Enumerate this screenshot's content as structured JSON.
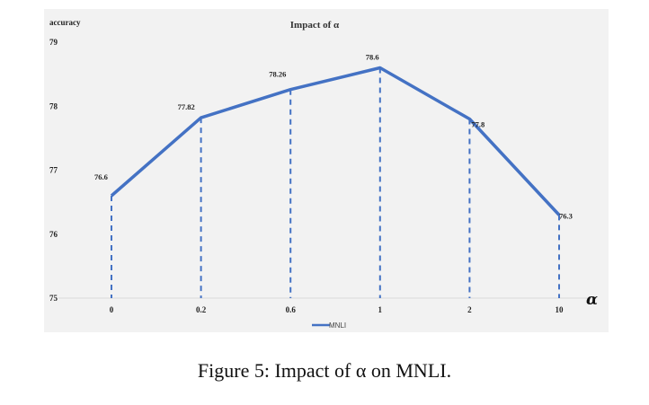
{
  "chart_data": {
    "type": "line",
    "title": "Impact of α",
    "ylabel": "accuracy",
    "xlabel": "α",
    "categories": [
      "0",
      "0.2",
      "0.6",
      "1",
      "2",
      "10"
    ],
    "series": [
      {
        "name": "MNLI",
        "values": [
          76.6,
          77.82,
          78.26,
          78.6,
          77.8,
          76.3
        ],
        "color": "#4472c4"
      }
    ],
    "data_labels": [
      "76.6",
      "77.82",
      "78.26",
      "78.6",
      "77.8",
      "76.3"
    ],
    "yticks": [
      "75",
      "76",
      "77",
      "78",
      "79"
    ],
    "ylim": [
      75,
      79
    ],
    "legend": "bottom",
    "grid": false,
    "drop_lines": "dashed"
  },
  "caption": "Figure 5: Impact of α on MNLI."
}
